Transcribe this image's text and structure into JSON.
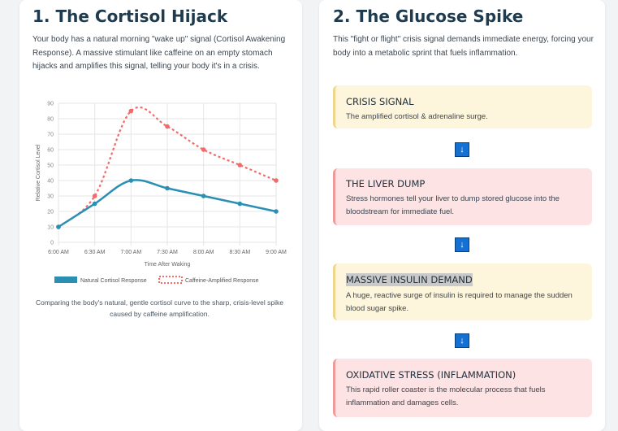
{
  "left": {
    "title": "1. The Cortisol Hijack",
    "intro": "Your body has a natural morning \"wake up\" signal (Cortisol Awakening Response). A massive stimulant like caffeine on an empty stomach hijacks and amplifies this signal, telling your body it's in a crisis.",
    "caption": "Comparing the body's natural, gentle cortisol curve to the sharp, crisis-level spike caused by caffeine amplification."
  },
  "right": {
    "title": "2. The Glucose Spike",
    "intro": "This \"fight or flight\" crisis signal demands immediate energy, forcing your body into a metabolic sprint that fuels inflammation.",
    "arrow_glyph": "↓",
    "steps": [
      {
        "title": "CRISIS SIGNAL",
        "desc": "The amplified cortisol & adrenaline surge.",
        "tone": "yellow"
      },
      {
        "title": "THE LIVER DUMP",
        "desc": "Stress hormones tell your liver to dump stored glucose into the bloodstream for immediate fuel.",
        "tone": "red"
      },
      {
        "title": "MASSIVE INSULIN DEMAND",
        "desc": "A huge, reactive surge of insulin is required to manage the sudden blood sugar spike.",
        "tone": "yellow"
      },
      {
        "title": "OXIDATIVE STRESS (INFLAMMATION)",
        "desc": "This rapid roller coaster is the molecular process that fuels inflammation and damages cells.",
        "tone": "red"
      }
    ]
  },
  "colors": {
    "natural": "#2a8fb3",
    "amplified": "#f26b6b",
    "grid": "#e6e6e6"
  },
  "chart_data": {
    "type": "line",
    "x": [
      "6:00 AM",
      "6:30 AM",
      "7:00 AM",
      "7:30 AM",
      "8:00 AM",
      "8:30 AM",
      "9:00 AM"
    ],
    "xlabel": "Time After Waking",
    "ylabel": "Relative Cortisol Level",
    "ylim": [
      0,
      90
    ],
    "yticks": [
      0,
      10,
      20,
      30,
      40,
      50,
      60,
      70,
      80,
      90
    ],
    "grid": true,
    "legend_position": "bottom",
    "series": [
      {
        "name": "Natural Cortisol Response",
        "values": [
          10,
          25,
          40,
          35,
          30,
          25,
          20
        ],
        "style": "solid"
      },
      {
        "name": "Caffeine-Amplified Response",
        "values": [
          10,
          30,
          85,
          75,
          60,
          50,
          40
        ],
        "style": "dashed"
      }
    ]
  }
}
